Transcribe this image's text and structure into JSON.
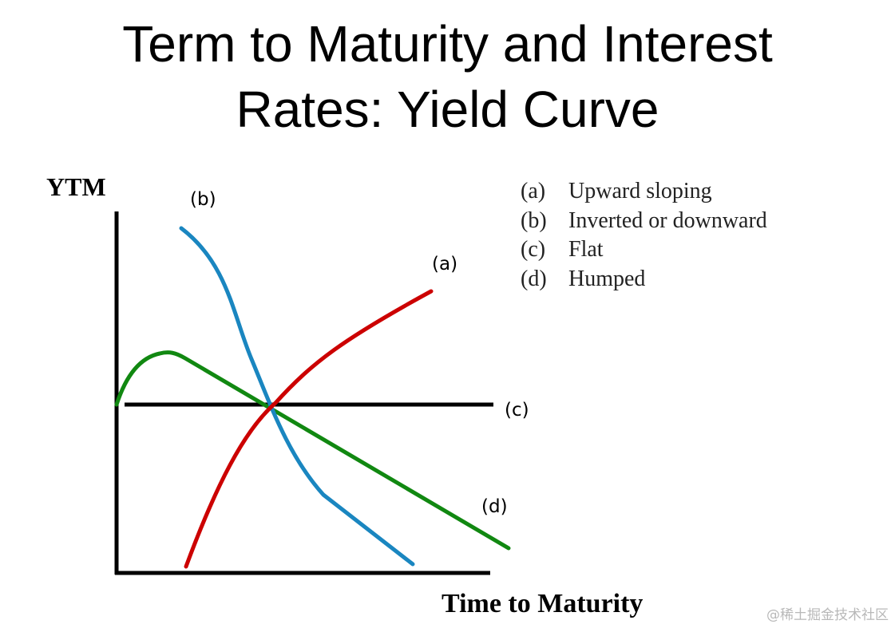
{
  "title": {
    "line1": "Term to Maturity and Interest",
    "line2": "Rates:  Yield Curve"
  },
  "axes": {
    "y_label": "YTM",
    "x_label": "Time to Maturity"
  },
  "curve_labels": {
    "a": "(a)",
    "b": "(b)",
    "c": "(c)",
    "d": "(d)"
  },
  "legend": [
    {
      "key": "(a)",
      "text": "Upward sloping"
    },
    {
      "key": "(b)",
      "text": "Inverted or downward"
    },
    {
      "key": "(c)",
      "text": "Flat"
    },
    {
      "key": "(d)",
      "text": "Humped"
    }
  ],
  "colors": {
    "upward": "#cc0000",
    "inverted": "#1a86c0",
    "flat": "#000000",
    "humped": "#118811"
  },
  "watermark": "@稀土掘金技术社区"
}
